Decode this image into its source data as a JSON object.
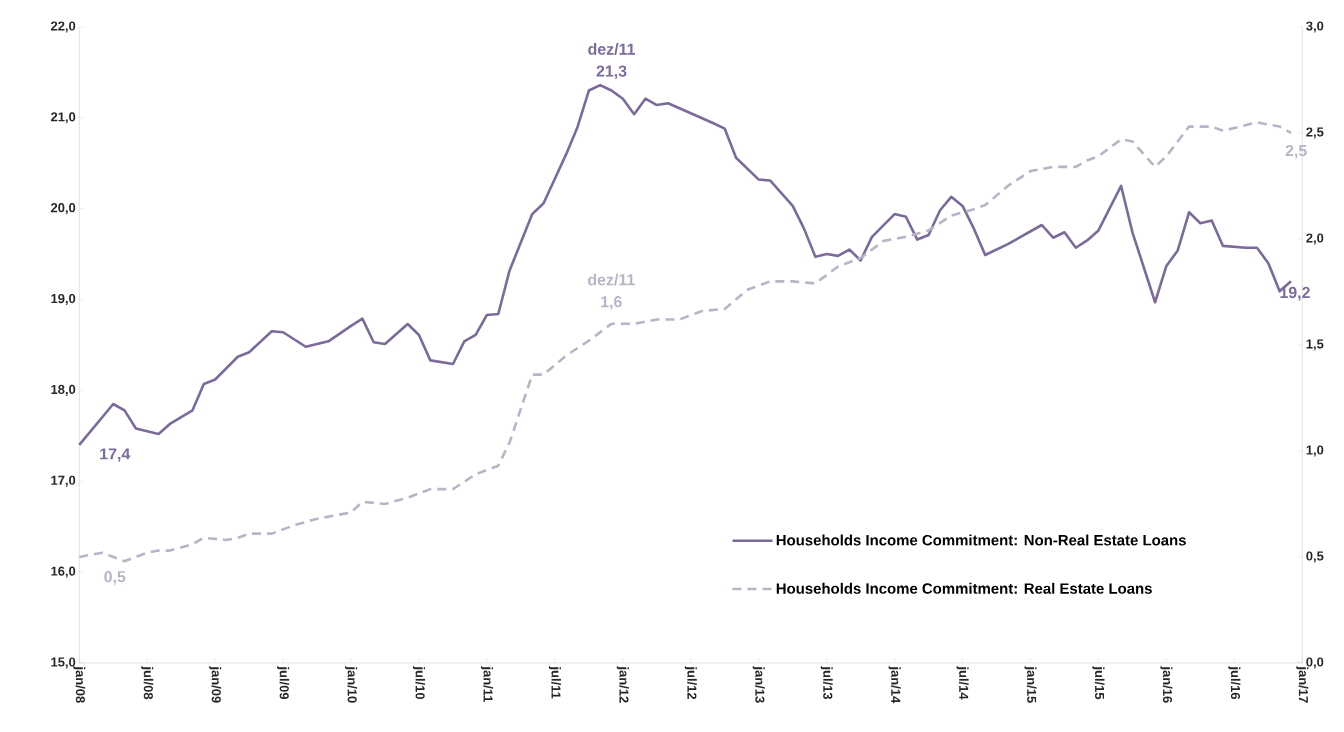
{
  "chart_data": {
    "type": "line",
    "xlim": [
      "2008-01",
      "2017-01"
    ],
    "xticks": [
      {
        "value": "2008-01",
        "label": "jan/08"
      },
      {
        "value": "2008-07",
        "label": "jul/08"
      },
      {
        "value": "2009-01",
        "label": "jan/09"
      },
      {
        "value": "2009-07",
        "label": "jul/09"
      },
      {
        "value": "2010-01",
        "label": "jan/10"
      },
      {
        "value": "2010-07",
        "label": "jul/10"
      },
      {
        "value": "2011-01",
        "label": "jan/11"
      },
      {
        "value": "2011-07",
        "label": "jul/11"
      },
      {
        "value": "2012-01",
        "label": "jan/12"
      },
      {
        "value": "2012-07",
        "label": "jul/12"
      },
      {
        "value": "2013-01",
        "label": "jan/13"
      },
      {
        "value": "2013-07",
        "label": "jul/13"
      },
      {
        "value": "2014-01",
        "label": "jan/14"
      },
      {
        "value": "2014-07",
        "label": "jul/14"
      },
      {
        "value": "2015-01",
        "label": "jan/15"
      },
      {
        "value": "2015-07",
        "label": "jul/15"
      },
      {
        "value": "2016-01",
        "label": "jan/16"
      },
      {
        "value": "2016-07",
        "label": "jul/16"
      },
      {
        "value": "2017-01",
        "label": "jan/17"
      }
    ],
    "ylim": [
      15,
      22
    ],
    "yticks": [
      {
        "value": 15,
        "label": "15,0"
      },
      {
        "value": 16,
        "label": "16,0"
      },
      {
        "value": 17,
        "label": "17,0"
      },
      {
        "value": 18,
        "label": "18,0"
      },
      {
        "value": 19,
        "label": "19,0"
      },
      {
        "value": 20,
        "label": "20,0"
      },
      {
        "value": 21,
        "label": "21,0"
      },
      {
        "value": 22,
        "label": "22,0"
      }
    ],
    "y2lim": [
      0,
      3
    ],
    "y2ticks": [
      {
        "value": 0,
        "label": "0,0"
      },
      {
        "value": 0.5,
        "label": "0,5"
      },
      {
        "value": 1,
        "label": "1,0"
      },
      {
        "value": 1.5,
        "label": "1,5"
      },
      {
        "value": 2,
        "label": "2,0"
      },
      {
        "value": 2.5,
        "label": "2,5"
      },
      {
        "value": 3,
        "label": "3,0"
      }
    ],
    "legend": "bottom",
    "series": [
      {
        "name": "Households Income Commitment: Non-Real Estate Loans",
        "color": "#7b6a9b",
        "line_style": "solid",
        "x": [
          "2008-01",
          "2008-04",
          "2008-05",
          "2008-06",
          "2008-07",
          "2008-08",
          "2008-09",
          "2008-11",
          "2008-12",
          "2009-01",
          "2009-03",
          "2009-04",
          "2009-06",
          "2009-07",
          "2009-09",
          "2009-11",
          "2010-01",
          "2010-02",
          "2010-03",
          "2010-04",
          "2010-06",
          "2010-07",
          "2010-08",
          "2010-10",
          "2010-11",
          "2010-12",
          "2011-01",
          "2011-02",
          "2011-03",
          "2011-05",
          "2011-06",
          "2011-08",
          "2011-09",
          "2011-10",
          "2011-11",
          "2011-12",
          "2012-01",
          "2012-02",
          "2012-03",
          "2012-04",
          "2012-05",
          "2012-07",
          "2012-09",
          "2012-10",
          "2012-11",
          "2012-12",
          "2013-01",
          "2013-02",
          "2013-04",
          "2013-05",
          "2013-06",
          "2013-07",
          "2013-08",
          "2013-09",
          "2013-10",
          "2013-11",
          "2014-01",
          "2014-02",
          "2014-03",
          "2014-04",
          "2014-05",
          "2014-06",
          "2014-07",
          "2014-08",
          "2014-09",
          "2014-11",
          "2015-02",
          "2015-03",
          "2015-04",
          "2015-05",
          "2015-06",
          "2015-07",
          "2015-09",
          "2015-10",
          "2015-12",
          "2016-01",
          "2016-02",
          "2016-03",
          "2016-04",
          "2016-05",
          "2016-06",
          "2016-08",
          "2016-09",
          "2016-10",
          "2016-11",
          "2016-12"
        ],
        "values": [
          17.4,
          17.85,
          17.78,
          17.58,
          17.55,
          17.52,
          17.63,
          17.78,
          18.07,
          18.12,
          18.37,
          18.42,
          18.65,
          18.64,
          18.48,
          18.54,
          18.71,
          18.79,
          18.53,
          18.51,
          18.73,
          18.61,
          18.33,
          18.29,
          18.54,
          18.61,
          18.83,
          18.84,
          19.32,
          19.94,
          20.06,
          20.6,
          20.9,
          21.3,
          21.36,
          21.3,
          21.21,
          21.04,
          21.21,
          21.14,
          21.16,
          21.05,
          20.94,
          20.88,
          20.56,
          20.44,
          20.32,
          20.31,
          20.03,
          19.78,
          19.47,
          19.5,
          19.48,
          19.55,
          19.43,
          19.69,
          19.94,
          19.91,
          19.66,
          19.71,
          19.98,
          20.13,
          20.03,
          19.78,
          19.49,
          19.61,
          19.82,
          19.68,
          19.74,
          19.57,
          19.65,
          19.76,
          20.25,
          19.74,
          18.97,
          19.37,
          19.54,
          19.96,
          19.84,
          19.87,
          19.59,
          19.57,
          19.57,
          19.4,
          19.09,
          19.2
        ]
      },
      {
        "name": "Households Income Commitment: Real Estate Loans",
        "color": "#b8b4c8",
        "line_style": "dashed",
        "axis": "y2",
        "x": [
          "2008-01",
          "2008-03",
          "2008-05",
          "2008-07",
          "2008-08",
          "2008-09",
          "2008-11",
          "2008-12",
          "2009-02",
          "2009-03",
          "2009-04",
          "2009-06",
          "2009-08",
          "2009-10",
          "2010-01",
          "2010-02",
          "2010-04",
          "2010-06",
          "2010-08",
          "2010-10",
          "2010-12",
          "2011-02",
          "2011-03",
          "2011-04",
          "2011-05",
          "2011-06",
          "2011-08",
          "2011-10",
          "2011-12",
          "2012-02",
          "2012-04",
          "2012-06",
          "2012-08",
          "2012-10",
          "2012-12",
          "2013-02",
          "2013-04",
          "2013-06",
          "2013-08",
          "2013-10",
          "2013-12",
          "2014-02",
          "2014-04",
          "2014-06",
          "2014-08",
          "2014-09",
          "2014-11",
          "2015-01",
          "2015-03",
          "2015-05",
          "2015-06",
          "2015-07",
          "2015-09",
          "2015-10",
          "2015-12",
          "2016-01",
          "2016-03",
          "2016-05",
          "2016-06",
          "2016-09",
          "2016-11",
          "2016-12"
        ],
        "values": [
          0.5,
          0.52,
          0.48,
          0.52,
          0.53,
          0.53,
          0.56,
          0.59,
          0.58,
          0.59,
          0.61,
          0.61,
          0.65,
          0.68,
          0.71,
          0.76,
          0.75,
          0.78,
          0.82,
          0.82,
          0.89,
          0.93,
          1.04,
          1.2,
          1.36,
          1.36,
          1.45,
          1.52,
          1.6,
          1.6,
          1.62,
          1.62,
          1.66,
          1.67,
          1.76,
          1.8,
          1.8,
          1.79,
          1.87,
          1.91,
          1.99,
          2.01,
          2.04,
          2.11,
          2.14,
          2.16,
          2.25,
          2.32,
          2.34,
          2.34,
          2.37,
          2.39,
          2.47,
          2.46,
          2.34,
          2.39,
          2.53,
          2.53,
          2.51,
          2.55,
          2.53,
          2.5
        ]
      }
    ],
    "annotations": [
      {
        "text": "dez/11 21,3",
        "x": "2011-12",
        "y": 21.3
      },
      {
        "text": "17,4",
        "x": "2008-01",
        "y": 17.4
      },
      {
        "text": "19,2",
        "x": "2016-12",
        "y": 19.2
      },
      "dez/11 1,6",
      "0,5",
      "2,5"
    ]
  }
}
